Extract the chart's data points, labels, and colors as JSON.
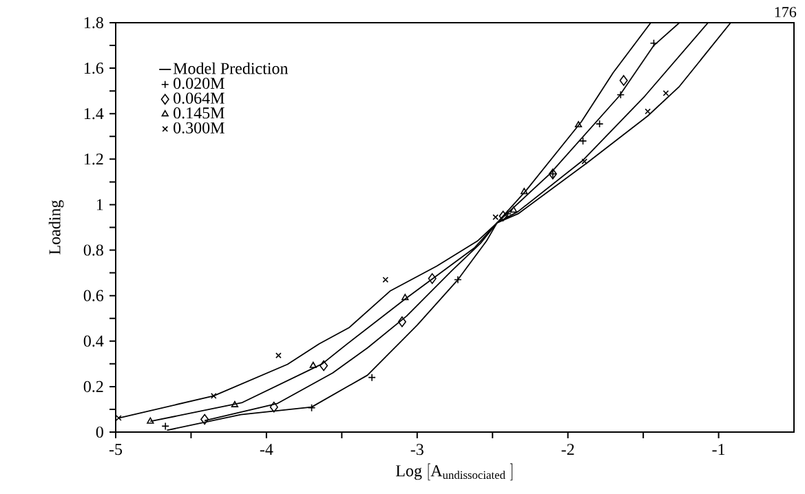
{
  "chart_data": {
    "type": "scatter",
    "xlabel": "\\mathrm{Log}\\ [\\mathrm{A}_{\\mathrm{undissociated}}\\ ]",
    "ylabel": "Loading",
    "annotations": [
      "176"
    ],
    "xlim": [
      -5,
      -0.5
    ],
    "ylim": [
      0,
      1.8
    ],
    "xticks": [
      -5,
      {
        "value": -4.5,
        "label": null
      },
      -4,
      {
        "value": -3.5,
        "label": null
      },
      -3,
      {
        "value": -2.5,
        "label": null
      },
      -2,
      {
        "value": -1.5,
        "label": null
      },
      -1
    ],
    "yticks": [
      0,
      {
        "value": 0.1,
        "label": null
      },
      0.2,
      {
        "value": 0.3,
        "label": null
      },
      0.4,
      {
        "value": 0.5,
        "label": null
      },
      0.6,
      {
        "value": 0.7,
        "label": null
      },
      0.8,
      {
        "value": 0.9,
        "label": null
      },
      1,
      {
        "value": 1.1,
        "label": null
      },
      1.2,
      {
        "value": 1.3,
        "label": null
      },
      1.4,
      {
        "value": 1.5,
        "label": null
      },
      1.6,
      {
        "value": 1.7,
        "label": null
      },
      1.8
    ],
    "legend": "top left",
    "series": [
      {
        "name": "Model Prediction",
        "type": "line",
        "marker": "none",
        "line_style": "solid",
        "color": "#000000",
        "x": [
          -4.66,
          -4.17,
          -3.7,
          -3.33,
          -3.12,
          -3.0,
          -2.73,
          -2.54,
          -2.47,
          -2.28,
          -1.91,
          -1.7,
          -1.45
        ],
        "values": [
          0.008,
          0.077,
          0.11,
          0.25,
          0.39,
          0.47,
          0.67,
          0.84,
          0.92,
          1.06,
          1.365,
          1.58,
          1.8
        ]
      },
      {
        "type": "line",
        "marker": "none",
        "line_style": "solid",
        "color": "#000000",
        "x": [
          -4.41,
          -3.93,
          -3.56,
          -3.33,
          -3.07,
          -2.77,
          -2.58,
          -2.47,
          -2.12,
          -1.66,
          -1.43,
          -1.26
        ],
        "values": [
          0.05,
          0.125,
          0.26,
          0.37,
          0.51,
          0.71,
          0.83,
          0.92,
          1.135,
          1.477,
          1.7,
          1.8
        ]
      },
      {
        "type": "line",
        "marker": "none",
        "line_style": "solid",
        "color": "#000000",
        "x": [
          -4.77,
          -4.16,
          -3.63,
          -3.46,
          -3.07,
          -2.62,
          -2.47,
          -2.33,
          -1.9,
          -1.49,
          -1.07
        ],
        "values": [
          0.047,
          0.13,
          0.3,
          0.39,
          0.59,
          0.81,
          0.92,
          0.97,
          1.195,
          1.477,
          1.8
        ]
      },
      {
        "type": "line",
        "marker": "none",
        "line_style": "solid",
        "color": "#000000",
        "x": [
          -4.98,
          -4.35,
          -3.86,
          -3.65,
          -3.45,
          -3.18,
          -2.87,
          -2.6,
          -2.47,
          -2.33,
          -1.87,
          -1.47,
          -1.26,
          -0.92
        ],
        "values": [
          0.062,
          0.159,
          0.298,
          0.388,
          0.46,
          0.62,
          0.73,
          0.84,
          0.92,
          0.96,
          1.185,
          1.39,
          1.52,
          1.8
        ]
      },
      {
        "name": "0.020M",
        "marker": "plus",
        "color": "#000000",
        "x": [
          -4.67,
          -3.7,
          -3.3,
          -2.73,
          -2.4,
          -2.1,
          -1.9,
          -1.79,
          -1.65,
          -1.43
        ],
        "values": [
          0.026,
          0.107,
          0.24,
          0.67,
          0.96,
          1.135,
          1.28,
          1.355,
          1.483,
          1.71
        ]
      },
      {
        "name": "0.064M",
        "marker": "diamond",
        "color": "#000000",
        "x": [
          -4.41,
          -3.95,
          -3.62,
          -3.1,
          -2.9,
          -2.43,
          -2.1,
          -1.63
        ],
        "values": [
          0.056,
          0.11,
          0.292,
          0.485,
          0.675,
          0.95,
          1.135,
          1.546
        ]
      },
      {
        "name": "0.145M",
        "marker": "triangle",
        "color": "#000000",
        "x": [
          -4.77,
          -4.21,
          -3.69,
          -3.08,
          -2.36,
          -2.29,
          -1.93
        ],
        "values": [
          0.047,
          0.119,
          0.292,
          0.59,
          0.975,
          1.056,
          1.35
        ]
      },
      {
        "name": "0.300M",
        "marker": "cross",
        "color": "#000000",
        "x": [
          -4.98,
          -4.35,
          -3.92,
          -3.21,
          -2.48,
          -1.89,
          -1.47,
          -1.35
        ],
        "values": [
          0.062,
          0.159,
          0.337,
          0.67,
          0.945,
          1.19,
          1.41,
          1.49
        ]
      }
    ]
  }
}
